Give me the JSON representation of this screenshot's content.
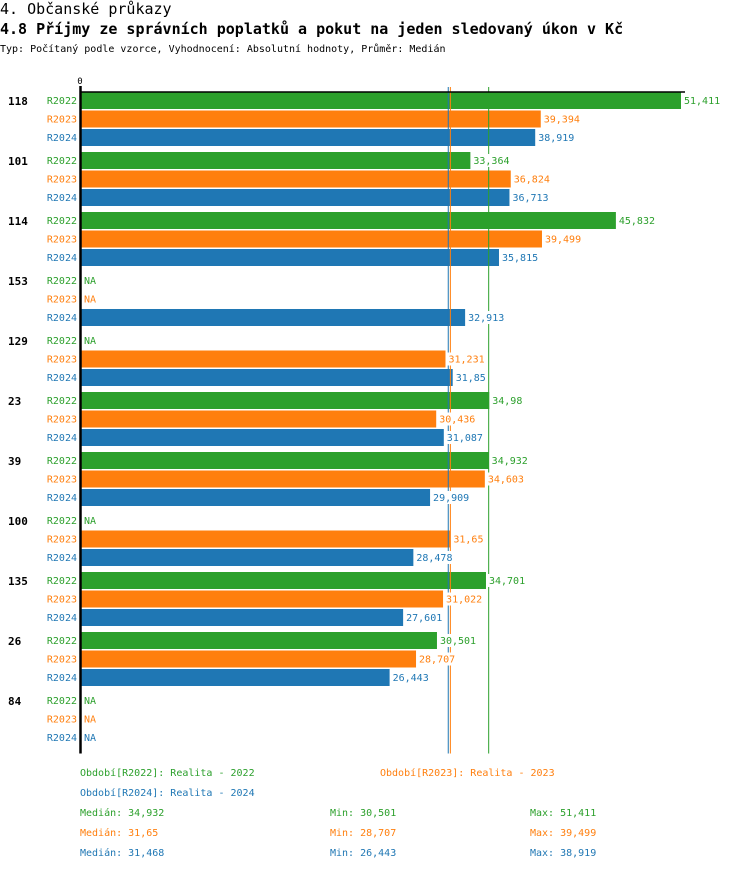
{
  "header": {
    "section": "4. Občanské průkazy",
    "title": "4.8 Příjmy ze správních poplatků a pokut na jeden sledovaný úkon v Kč",
    "subtitle": "Typ: Počítaný podle vzorce, Vyhodnocení: Absolutní hodnoty, Průměr: Medián"
  },
  "chart_data": {
    "type": "bar",
    "orientation": "horizontal",
    "title": "4.8 Příjmy ze správních poplatků a pokut na jeden sledovaný úkon v Kč",
    "xlabel": "",
    "ylabel": "",
    "x_tick_labels": [
      "0"
    ],
    "xlim": [
      0,
      51.411
    ],
    "grid": false,
    "na_label": "NA",
    "categories": [
      "118",
      "101",
      "114",
      "153",
      "129",
      "23",
      "39",
      "100",
      "135",
      "26",
      "84"
    ],
    "series": [
      {
        "name": "R2022",
        "color": "#2ca02c",
        "values": [
          51.411,
          33.364,
          45.832,
          null,
          null,
          34.98,
          34.932,
          null,
          34.701,
          30.501,
          null
        ],
        "labels": [
          "51,411",
          "33,364",
          "45,832",
          "NA",
          "NA",
          "34,98",
          "34,932",
          "NA",
          "34,701",
          "30,501",
          "NA"
        ]
      },
      {
        "name": "R2023",
        "color": "#ff7f0e",
        "values": [
          39.394,
          36.824,
          39.499,
          null,
          31.231,
          30.436,
          34.603,
          31.65,
          31.022,
          28.707,
          null
        ],
        "labels": [
          "39,394",
          "36,824",
          "39,499",
          "NA",
          "31,231",
          "30,436",
          "34,603",
          "31,65",
          "31,022",
          "28,707",
          "NA"
        ]
      },
      {
        "name": "R2024",
        "color": "#1f77b4",
        "values": [
          38.919,
          36.713,
          35.815,
          32.913,
          31.85,
          31.087,
          29.909,
          28.478,
          27.601,
          26.443,
          null
        ],
        "labels": [
          "38,919",
          "36,713",
          "35,815",
          "32,913",
          "31,85",
          "31,087",
          "29,909",
          "28,478",
          "27,601",
          "26,443",
          "NA"
        ]
      }
    ],
    "median_lines": [
      {
        "series": "R2022",
        "value": 34.932
      },
      {
        "series": "R2023",
        "value": 31.65
      },
      {
        "series": "R2024",
        "value": 31.468
      }
    ],
    "legend": {
      "periods": [
        {
          "text": "Období[R2022]: Realita - 2022",
          "color": "#2ca02c"
        },
        {
          "text": "Období[R2023]: Realita - 2023",
          "color": "#ff7f0e"
        },
        {
          "text": "Období[R2024]: Realita - 2024",
          "color": "#1f77b4"
        }
      ],
      "stats": [
        {
          "median": "Medián: 34,932",
          "min": "Min: 30,501",
          "max": "Max: 51,411",
          "color": "#2ca02c"
        },
        {
          "median": "Medián: 31,65",
          "min": "Min: 28,707",
          "max": "Max: 39,499",
          "color": "#ff7f0e"
        },
        {
          "median": "Medián: 31,468",
          "min": "Min: 26,443",
          "max": "Max: 38,919",
          "color": "#1f77b4"
        }
      ]
    }
  }
}
